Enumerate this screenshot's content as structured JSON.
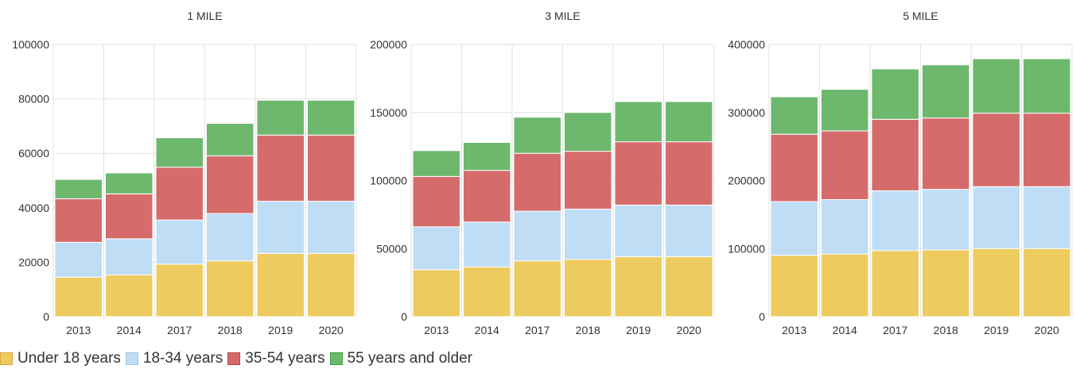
{
  "chart_data": [
    {
      "type": "bar",
      "stacked": true,
      "title": "1 MILE",
      "categories": [
        "2013",
        "2014",
        "2017",
        "2018",
        "2019",
        "2020"
      ],
      "ylim": [
        0,
        100000
      ],
      "yticks": [
        "0",
        "20000",
        "40000",
        "60000",
        "80000",
        "100000"
      ],
      "grid": true,
      "series": [
        {
          "name": "Under 18 years",
          "values": [
            14500,
            15300,
            19300,
            20500,
            23200,
            23200
          ]
        },
        {
          "name": "18-34 years",
          "values": [
            12800,
            13300,
            16200,
            17400,
            19200,
            19200
          ]
        },
        {
          "name": "35-54 years",
          "values": [
            16000,
            16500,
            19400,
            21200,
            24300,
            24300
          ]
        },
        {
          "name": "55 years and older",
          "values": [
            7100,
            7700,
            10800,
            11900,
            12800,
            12800
          ]
        }
      ]
    },
    {
      "type": "bar",
      "stacked": true,
      "title": "3 MILE",
      "categories": [
        "2013",
        "2014",
        "2017",
        "2018",
        "2019",
        "2020"
      ],
      "ylim": [
        0,
        200000
      ],
      "yticks": [
        "0",
        "50000",
        "100000",
        "150000",
        "200000"
      ],
      "grid": true,
      "series": [
        {
          "name": "Under 18 years",
          "values": [
            34500,
            36500,
            41000,
            42000,
            44000,
            44000
          ]
        },
        {
          "name": "18-34 years",
          "values": [
            31500,
            33000,
            36500,
            37000,
            38000,
            38000
          ]
        },
        {
          "name": "35-54 years",
          "values": [
            37000,
            38000,
            42500,
            42500,
            46500,
            46500
          ]
        },
        {
          "name": "55 years and older",
          "values": [
            19000,
            20500,
            26500,
            28500,
            29500,
            29500
          ]
        }
      ]
    },
    {
      "type": "bar",
      "stacked": true,
      "title": "5 MILE",
      "categories": [
        "2013",
        "2014",
        "2017",
        "2018",
        "2019",
        "2020"
      ],
      "ylim": [
        0,
        400000
      ],
      "yticks": [
        "0",
        "100000",
        "200000",
        "300000",
        "400000"
      ],
      "grid": true,
      "series": [
        {
          "name": "Under 18 years",
          "values": [
            90000,
            92000,
            97000,
            98000,
            100000,
            100000
          ]
        },
        {
          "name": "18-34 years",
          "values": [
            79000,
            80000,
            88000,
            89000,
            91000,
            91000
          ]
        },
        {
          "name": "35-54 years",
          "values": [
            99000,
            101000,
            105000,
            105000,
            108000,
            108000
          ]
        },
        {
          "name": "55 years and older",
          "values": [
            55000,
            61000,
            74000,
            78000,
            80000,
            80000
          ]
        }
      ]
    }
  ],
  "legend": {
    "placement": "bottom-left",
    "items": [
      {
        "label": "Under 18 years",
        "color": "#EDCB5E"
      },
      {
        "label": "18-34 years",
        "color": "#BFDDF5"
      },
      {
        "label": "35-54 years",
        "color": "#D66B6B"
      },
      {
        "label": "55 years and older",
        "color": "#6DB86D"
      }
    ]
  },
  "colors": {
    "series": [
      "#EDCB5E",
      "#BFDDF5",
      "#D66B6B",
      "#6DB86D"
    ],
    "swatch_borders": [
      "#D4A93A",
      "#9EC3E4",
      "#B54545",
      "#3F9A3F"
    ],
    "grid": "#E2E2E2",
    "text": "#333333"
  }
}
